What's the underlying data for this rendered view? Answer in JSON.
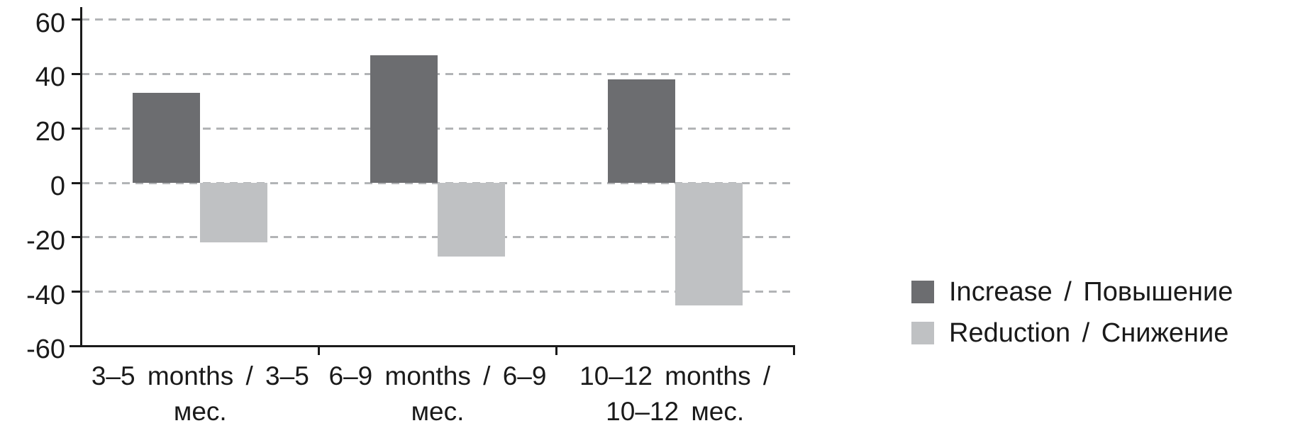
{
  "figure": {
    "background": "#ffffff",
    "axis_color": "#1a1a1a",
    "gridline_color": "#b2b4b6"
  },
  "chart_data": {
    "type": "bar",
    "title": "",
    "xlabel": "",
    "ylabel": "",
    "categories": [
      "3–5 months / 3–5 мес.",
      "6–9 months / 6–9 мес.",
      "10–12 months / 10–12 мес."
    ],
    "category_label_lines": [
      [
        "3–5 months / 3–5",
        "мес."
      ],
      [
        "6–9 months / 6–9",
        "мес."
      ],
      [
        "10–12 months /",
        "10–12 мес."
      ]
    ],
    "series": [
      {
        "name": "Increase / Повышение",
        "color": "#6c6d70",
        "values": [
          33,
          47,
          38
        ]
      },
      {
        "name": "Reduction / Снижение",
        "color": "#bfc1c3",
        "values": [
          -22,
          -27,
          -45
        ]
      }
    ],
    "ylim": [
      -60,
      60
    ],
    "yticks": [
      {
        "value": 60,
        "label": "60"
      },
      {
        "value": 40,
        "label": "40"
      },
      {
        "value": 20,
        "label": "20"
      },
      {
        "value": 0,
        "label": "0"
      },
      {
        "value": -20,
        "label": "-20"
      },
      {
        "value": -40,
        "label": "-40"
      },
      {
        "value": -60,
        "label": "-60"
      }
    ],
    "grid": {
      "show": true,
      "style": "dashed",
      "lines_at": [
        60,
        40,
        20,
        0,
        -20,
        -40
      ]
    },
    "legend": {
      "position": "right",
      "items": [
        "Increase / Повышение",
        "Reduction / Снижение"
      ]
    }
  }
}
